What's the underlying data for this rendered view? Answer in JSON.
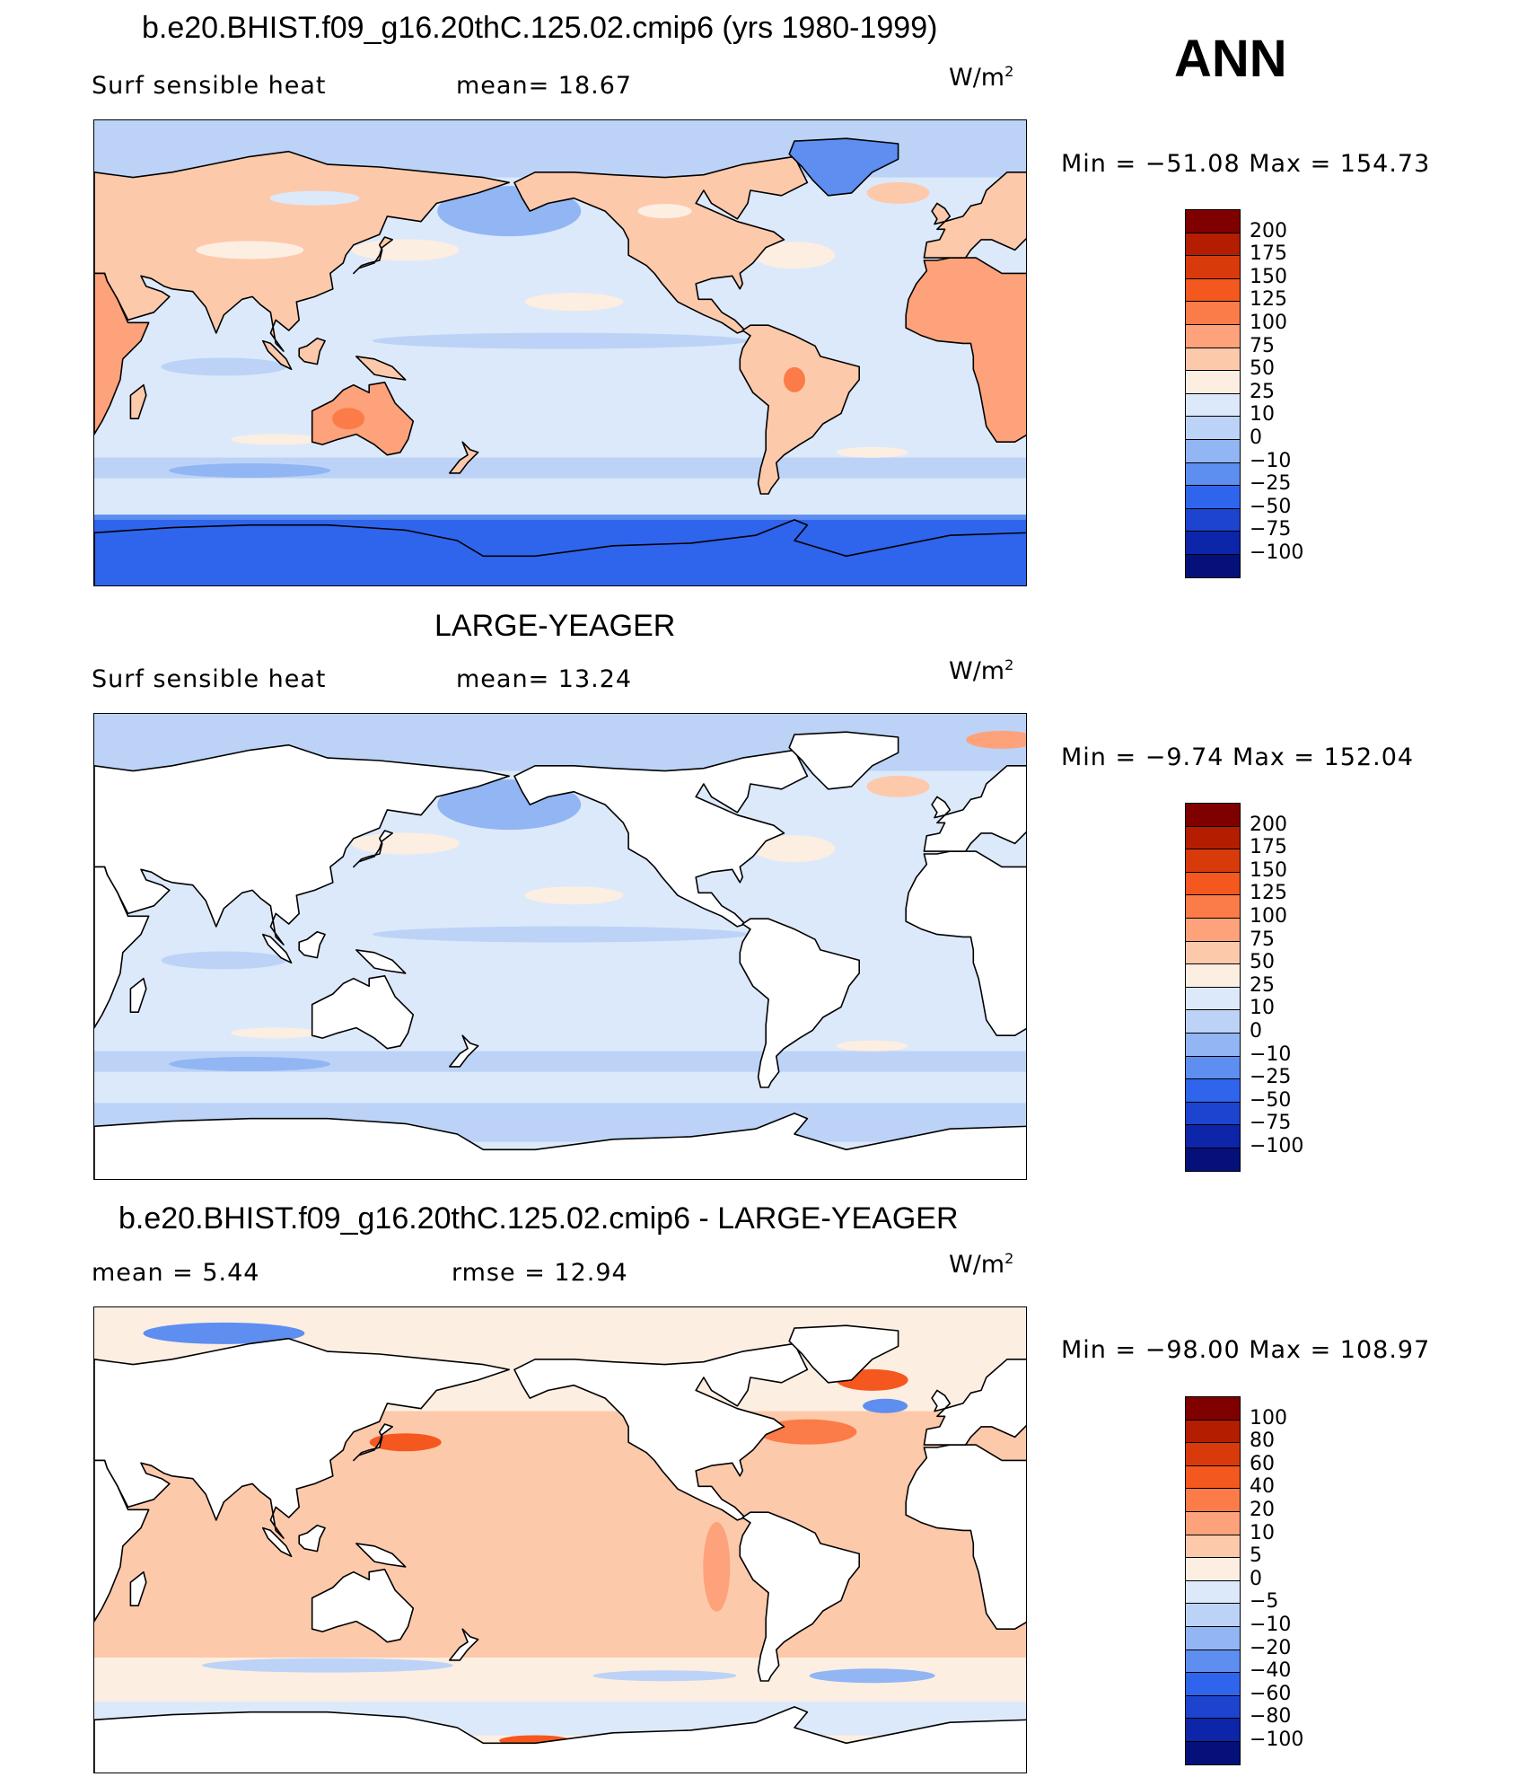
{
  "season": "ANN",
  "panels": [
    {
      "title": "b.e20.BHIST.f09_g16.20thC.125.02.cmip6 (yrs 1980-1999)",
      "stat_left": "Surf  sensible  heat",
      "stat_mid": "mean=   18.67",
      "units": "W/m",
      "units_sup": "2",
      "min_max": "Min  =  −51.08  Max  =  154.73",
      "colorbar_levels": [
        "200",
        "175",
        "150",
        "125",
        "100",
        "75",
        "50",
        "25",
        "10",
        "0",
        "−10",
        "−25",
        "−50",
        "−75",
        "−100"
      ],
      "land": "colored",
      "mean": 18.67,
      "min": -51.08,
      "max": 154.73
    },
    {
      "title": "LARGE-YEAGER",
      "stat_left": "Surf  sensible  heat",
      "stat_mid": "mean=   13.24",
      "units": "W/m",
      "units_sup": "2",
      "min_max": "Min  =    −9.74  Max  =  152.04",
      "colorbar_levels": [
        "200",
        "175",
        "150",
        "125",
        "100",
        "75",
        "50",
        "25",
        "10",
        "0",
        "−10",
        "−25",
        "−50",
        "−75",
        "−100"
      ],
      "land": "masked",
      "mean": 13.24,
      "min": -9.74,
      "max": 152.04
    },
    {
      "title": "b.e20.BHIST.f09_g16.20thC.125.02.cmip6 - LARGE-YEAGER",
      "stat_left": "mean  =      5.44",
      "stat_mid": "rmse  =     12.94",
      "units": "W/m",
      "units_sup": "2",
      "min_max": "Min  =  −98.00  Max  =  108.97",
      "colorbar_levels": [
        "100",
        "80",
        "60",
        "40",
        "20",
        "10",
        "5",
        "0",
        "−5",
        "−10",
        "−20",
        "−40",
        "−60",
        "−80",
        "−100"
      ],
      "land": "masked",
      "mean": 5.44,
      "rmse": 12.94,
      "min": -98.0,
      "max": 108.97
    }
  ],
  "colors": {
    "levels_16": [
      "#800000",
      "#b51d00",
      "#d93a0c",
      "#f5581f",
      "#fb7c48",
      "#fda27a",
      "#fdc9ab",
      "#fdeee2",
      "#dce9fa",
      "#bcd3f7",
      "#92b5f4",
      "#5d8ef0",
      "#2f64ec",
      "#1c44cf",
      "#0d25a8",
      "#06107a"
    ],
    "diff_16": [
      "#800000",
      "#b51d00",
      "#d93a0c",
      "#f5581f",
      "#fb7c48",
      "#fda27a",
      "#fdc9ab",
      "#fdeee2",
      "#dce9fa",
      "#bcd3f7",
      "#92b5f4",
      "#5d8ef0",
      "#2f64ec",
      "#1c44cf",
      "#0d25a8",
      "#06107a"
    ]
  }
}
